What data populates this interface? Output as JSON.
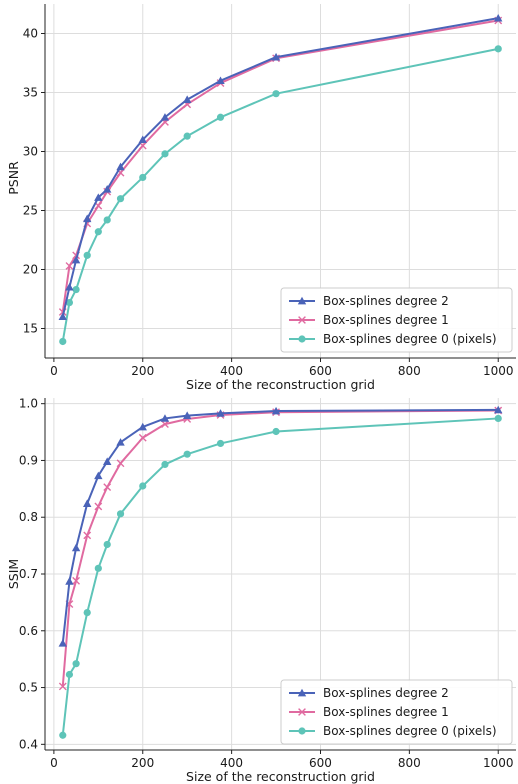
{
  "chart_data": [
    {
      "type": "line",
      "xlabel": "Size of the reconstruction grid",
      "ylabel": "PSNR",
      "xlim": [
        -20,
        1040
      ],
      "ylim": [
        12.5,
        42.5
      ],
      "xticks": [
        0,
        200,
        400,
        600,
        800,
        1000
      ],
      "yticks": [
        15,
        20,
        25,
        30,
        35,
        40
      ],
      "tick_labels_x": [
        "0",
        "200",
        "400",
        "600",
        "800",
        "1000"
      ],
      "tick_labels_y": [
        "15",
        "20",
        "25",
        "30",
        "35",
        "40"
      ],
      "grid": true,
      "legend_position": "lower-right",
      "series": [
        {
          "name": "Box-splines degree 2",
          "color": "#4a63b8",
          "marker": "triangle",
          "x": [
            20,
            35,
            50,
            75,
            100,
            120,
            150,
            200,
            250,
            300,
            375,
            500,
            1000
          ],
          "y": [
            16.0,
            18.5,
            20.8,
            24.3,
            26.1,
            26.8,
            28.7,
            31.0,
            32.9,
            34.4,
            36.0,
            38.0,
            41.3
          ]
        },
        {
          "name": "Box-splines degree 1",
          "color": "#e06aa0",
          "marker": "x",
          "x": [
            20,
            35,
            50,
            75,
            100,
            120,
            150,
            200,
            250,
            300,
            375,
            500,
            1000
          ],
          "y": [
            16.4,
            20.3,
            21.2,
            23.9,
            25.4,
            26.6,
            28.2,
            30.5,
            32.5,
            34.0,
            35.8,
            37.9,
            41.1
          ]
        },
        {
          "name": "Box-splines degree 0 (pixels)",
          "color": "#5ec4b8",
          "marker": "circle",
          "x": [
            20,
            35,
            50,
            75,
            100,
            120,
            150,
            200,
            250,
            300,
            375,
            500,
            1000
          ],
          "y": [
            13.9,
            17.2,
            18.3,
            21.2,
            23.2,
            24.2,
            26.0,
            27.8,
            29.8,
            31.3,
            32.9,
            34.9,
            38.7
          ]
        }
      ]
    },
    {
      "type": "line",
      "xlabel": "Size of the reconstruction grid",
      "ylabel": "SSIM",
      "xlim": [
        -20,
        1040
      ],
      "ylim": [
        0.39,
        1.01
      ],
      "xticks": [
        0,
        200,
        400,
        600,
        800,
        1000
      ],
      "yticks": [
        0.4,
        0.5,
        0.6,
        0.7,
        0.8,
        0.9,
        1.0
      ],
      "tick_labels_x": [
        "0",
        "200",
        "400",
        "600",
        "800",
        "1000"
      ],
      "tick_labels_y": [
        "0.4",
        "0.5",
        "0.6",
        "0.7",
        "0.8",
        "0.9",
        "1.0"
      ],
      "grid": true,
      "legend_position": "lower-right",
      "series": [
        {
          "name": "Box-splines degree 2",
          "color": "#4a63b8",
          "marker": "triangle",
          "x": [
            20,
            35,
            50,
            75,
            100,
            120,
            150,
            200,
            250,
            300,
            375,
            500,
            1000
          ],
          "y": [
            0.578,
            0.687,
            0.746,
            0.824,
            0.873,
            0.898,
            0.932,
            0.959,
            0.974,
            0.979,
            0.983,
            0.987,
            0.989
          ]
        },
        {
          "name": "Box-splines degree 1",
          "color": "#e06aa0",
          "marker": "x",
          "x": [
            20,
            35,
            50,
            75,
            100,
            120,
            150,
            200,
            250,
            300,
            375,
            500,
            1000
          ],
          "y": [
            0.502,
            0.647,
            0.688,
            0.768,
            0.819,
            0.853,
            0.895,
            0.94,
            0.964,
            0.973,
            0.98,
            0.985,
            0.988
          ]
        },
        {
          "name": "Box-splines degree 0 (pixels)",
          "color": "#5ec4b8",
          "marker": "circle",
          "x": [
            20,
            35,
            50,
            75,
            100,
            120,
            150,
            200,
            250,
            300,
            375,
            500,
            1000
          ],
          "y": [
            0.416,
            0.523,
            0.542,
            0.632,
            0.71,
            0.752,
            0.806,
            0.855,
            0.893,
            0.911,
            0.93,
            0.951,
            0.974
          ]
        }
      ]
    }
  ]
}
